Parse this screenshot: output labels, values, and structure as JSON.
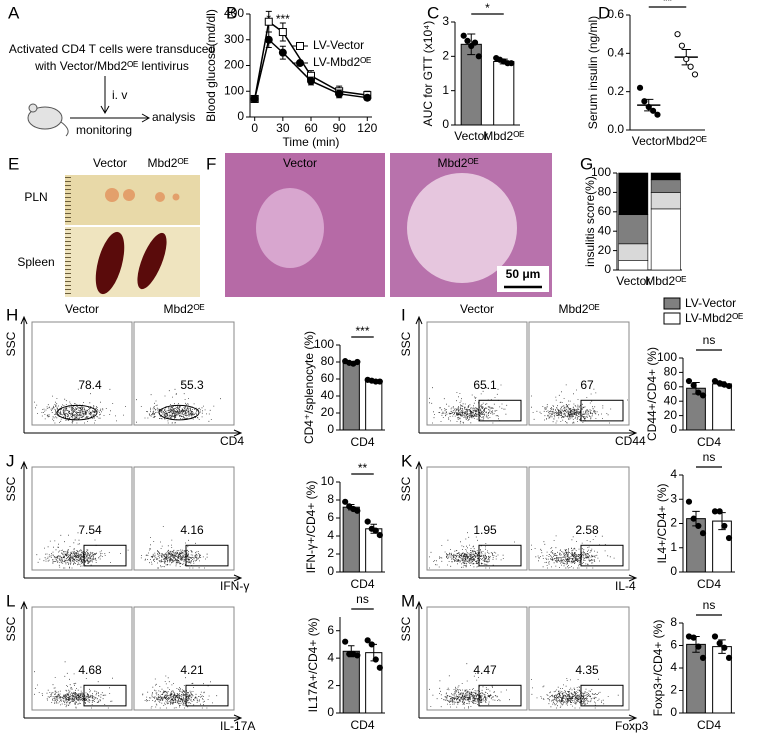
{
  "panel_labels": [
    "A",
    "B",
    "C",
    "D",
    "E",
    "F",
    "G",
    "H",
    "I",
    "J",
    "K",
    "L",
    "M"
  ],
  "schematic": {
    "line1": "Activated CD4 T cells were transduced",
    "line2": "with Vector/Mbd2ᴼᴱ lentivirus",
    "route": "i. v",
    "step1": "monitoring",
    "step2": "analysis"
  },
  "photo_E": {
    "columns": [
      "Vector",
      "Mbd2ᴼᴱ"
    ],
    "rows": [
      "PLN",
      "Spleen"
    ]
  },
  "histology_F": {
    "columns": [
      "Vector",
      "Mbd2ᴼᴱ"
    ],
    "scale_bar": "50 μm"
  },
  "flow_plots": [
    {
      "columns": [
        "Vector",
        "Mbd2ᴼᴱ"
      ],
      "y_label": "SSC",
      "x_label": "CD4",
      "gates": [
        78.4,
        55.3
      ]
    },
    {
      "columns": [
        "Vector",
        "Mbd2ᴼᴱ"
      ],
      "y_label": "SSC",
      "x_label": "CD44",
      "gates": [
        65.1,
        67
      ]
    },
    {
      "y_label": "SSC",
      "x_label": "IFN-γ",
      "gates": [
        7.54,
        4.16
      ]
    },
    {
      "y_label": "SSC",
      "x_label": "IL-4",
      "gates": [
        1.95,
        2.58
      ]
    },
    {
      "y_label": "SSC",
      "x_label": "IL-17A",
      "gates": [
        4.68,
        4.21
      ]
    },
    {
      "y_label": "SSC",
      "x_label": "Foxp3",
      "gates": [
        4.47,
        4.35
      ]
    }
  ],
  "chart_data": [
    {
      "type": "line",
      "y_label": "Blood glucose(md/dl)",
      "x_label": "Time (min)",
      "x": [
        0,
        15,
        30,
        60,
        90,
        120
      ],
      "xlim": [
        -5,
        125
      ],
      "xticks": [
        0,
        30,
        60,
        90,
        120
      ],
      "ylim": [
        0,
        400
      ],
      "yticks": [
        0,
        100,
        200,
        300,
        400
      ],
      "series": [
        {
          "name": "LV-Vector",
          "color": "#000000",
          "marker": "square",
          "fill": "#ffffff",
          "values": [
            70,
            370,
            330,
            160,
            100,
            85
          ],
          "errors": [
            10,
            40,
            35,
            20,
            20,
            15
          ]
        },
        {
          "name": "LV-Mbd2ᴼᴱ",
          "color": "#000000",
          "marker": "circle",
          "fill": "#000000",
          "values": [
            70,
            300,
            250,
            140,
            90,
            75
          ],
          "errors": [
            8,
            30,
            25,
            15,
            15,
            10
          ]
        }
      ],
      "annotations": [
        {
          "text": "*",
          "x": 15
        },
        {
          "text": "***",
          "x": 30
        }
      ]
    },
    {
      "type": "bar",
      "y_label": "AUC for GTT (x10⁴)",
      "categories": [
        "Vector",
        "Mbd2ᴼᴱ"
      ],
      "values": [
        2.35,
        1.85
      ],
      "errors": [
        0.3,
        0.07
      ],
      "colors": [
        "#808080",
        "#ffffff"
      ],
      "point_colors": [
        "#000000",
        "#000000"
      ],
      "points": [
        [
          2.6,
          2.45,
          2.3,
          2.4,
          2.0
        ],
        [
          1.95,
          1.9,
          1.85,
          1.8,
          1.8
        ]
      ],
      "ylim": [
        0,
        3
      ],
      "yticks": [
        0,
        1,
        2,
        3
      ],
      "sig": "*"
    },
    {
      "type": "dot",
      "y_label": "Serum insulin (ng/ml)",
      "categories": [
        "Vector",
        "Mbd2ᴼᴱ"
      ],
      "values": [
        0.13,
        0.38
      ],
      "errors": [
        0.03,
        0.04
      ],
      "colors": [
        "#000000",
        "#000000"
      ],
      "point_colors": [
        "#000000",
        "#ffffff"
      ],
      "points": [
        [
          0.22,
          0.15,
          0.12,
          0.1,
          0.08
        ],
        [
          0.5,
          0.44,
          0.37,
          0.33,
          0.29
        ]
      ],
      "ylim": [
        0,
        0.6
      ],
      "yticks": [
        {
          "value": 0,
          "label": "0.0"
        },
        0.2,
        0.4,
        0.6
      ],
      "sig": "**"
    },
    {
      "type": "stacked_bar",
      "y_label": "insulitis score(%)",
      "categories": [
        "Vector",
        "Mbd2ᴼᴱ"
      ],
      "series": [
        {
          "color": "#ffffff",
          "values": [
            10,
            63
          ]
        },
        {
          "color": "#d9d9d9",
          "values": [
            17,
            17
          ]
        },
        {
          "color": "#7f7f7f",
          "values": [
            30,
            13
          ]
        },
        {
          "color": "#000000",
          "values": [
            43,
            7
          ]
        }
      ],
      "ylim": [
        0,
        100
      ],
      "yticks": [
        0,
        20,
        40,
        60,
        80,
        100
      ]
    },
    {
      "type": "grouped_bar",
      "y_label": "CD4⁺/splenocyte (%)",
      "categories": [
        "CD4"
      ],
      "series": [
        {
          "color": "#808080",
          "point_color": "#000000",
          "values": [
            79
          ],
          "errors": [
            1.5
          ],
          "points": [
            [
              81,
              79,
              78,
              80
            ]
          ]
        },
        {
          "color": "#ffffff",
          "point_color": "#000000",
          "values": [
            58
          ],
          "errors": [
            1.2
          ],
          "points": [
            [
              59,
              58,
              57,
              57
            ]
          ]
        }
      ],
      "ylim": [
        0,
        100
      ],
      "yticks": [
        0,
        20,
        40,
        60,
        80,
        100
      ],
      "sig": "***"
    },
    {
      "type": "grouped_bar",
      "y_label": "CD44+/CD4+ (%)",
      "categories": [
        "CD4"
      ],
      "legend": true,
      "series": [
        {
          "name": "LV-Vector",
          "color": "#808080",
          "point_color": "#000000",
          "values": [
            58
          ],
          "errors": [
            8
          ],
          "points": [
            [
              68,
              62,
              52,
              48
            ]
          ]
        },
        {
          "name": "LV-Mbd2ᴼᴱ",
          "color": "#ffffff",
          "point_color": "#000000",
          "values": [
            64
          ],
          "errors": [
            3
          ],
          "points": [
            [
              68,
              65,
              63,
              61
            ]
          ]
        }
      ],
      "ylim": [
        0,
        100
      ],
      "yticks": [
        0,
        20,
        40,
        60,
        80,
        100
      ],
      "sig": "ns"
    },
    {
      "type": "grouped_bar",
      "y_label": "IFN-γ+/CD4+ (%)",
      "categories": [
        "CD4"
      ],
      "series": [
        {
          "color": "#808080",
          "point_color": "#000000",
          "values": [
            7.2
          ],
          "errors": [
            0.3
          ],
          "points": [
            [
              7.8,
              7.3,
              7.0,
              6.8
            ]
          ]
        },
        {
          "color": "#ffffff",
          "point_color": "#000000",
          "values": [
            4.8
          ],
          "errors": [
            0.5
          ],
          "points": [
            [
              5.6,
              4.8,
              4.6,
              4.1
            ]
          ]
        }
      ],
      "ylim": [
        0,
        10
      ],
      "yticks": [
        0,
        2,
        4,
        6,
        8,
        10
      ],
      "sig": "**"
    },
    {
      "type": "grouped_bar",
      "y_label": "IL4+/CD4+ (%)",
      "categories": [
        "CD4"
      ],
      "series": [
        {
          "color": "#808080",
          "point_color": "#000000",
          "values": [
            2.2
          ],
          "errors": [
            0.3
          ],
          "points": [
            [
              2.9,
              2.2,
              1.9,
              1.6
            ]
          ]
        },
        {
          "color": "#ffffff",
          "point_color": "#000000",
          "values": [
            2.1
          ],
          "errors": [
            0.35
          ],
          "points": [
            [
              2.5,
              2.5,
              1.9,
              1.4
            ]
          ]
        }
      ],
      "ylim": [
        0,
        4
      ],
      "yticks": [
        0,
        1,
        2,
        3,
        4
      ],
      "sig": "ns"
    },
    {
      "type": "grouped_bar",
      "y_label": "IL17A+/CD4+ (%)",
      "categories": [
        "CD4"
      ],
      "series": [
        {
          "color": "#808080",
          "point_color": "#000000",
          "values": [
            4.5
          ],
          "errors": [
            0.4
          ],
          "points": [
            [
              5.2,
              4.3,
              4.3,
              4.2
            ]
          ]
        },
        {
          "color": "#ffffff",
          "point_color": "#000000",
          "values": [
            4.4
          ],
          "errors": [
            0.6
          ],
          "points": [
            [
              5.3,
              5.0,
              3.9,
              3.3
            ]
          ]
        }
      ],
      "ylim": [
        0,
        7
      ],
      "yticks": [
        0,
        2,
        4,
        6
      ],
      "sig": "ns"
    },
    {
      "type": "grouped_bar",
      "y_label": "Foxp3+/CD4+ (%)",
      "categories": [
        "CD4"
      ],
      "series": [
        {
          "color": "#808080",
          "point_color": "#000000",
          "values": [
            6.1
          ],
          "errors": [
            0.7
          ],
          "points": [
            [
              6.8,
              6.7,
              5.9,
              4.9
            ]
          ]
        },
        {
          "color": "#ffffff",
          "point_color": "#000000",
          "values": [
            5.9
          ],
          "errors": [
            0.6
          ],
          "points": [
            [
              6.8,
              6.2,
              5.8,
              4.9
            ]
          ]
        }
      ],
      "ylim": [
        0,
        8
      ],
      "yticks": [
        0,
        2,
        4,
        6,
        8
      ],
      "sig": "ns"
    }
  ]
}
